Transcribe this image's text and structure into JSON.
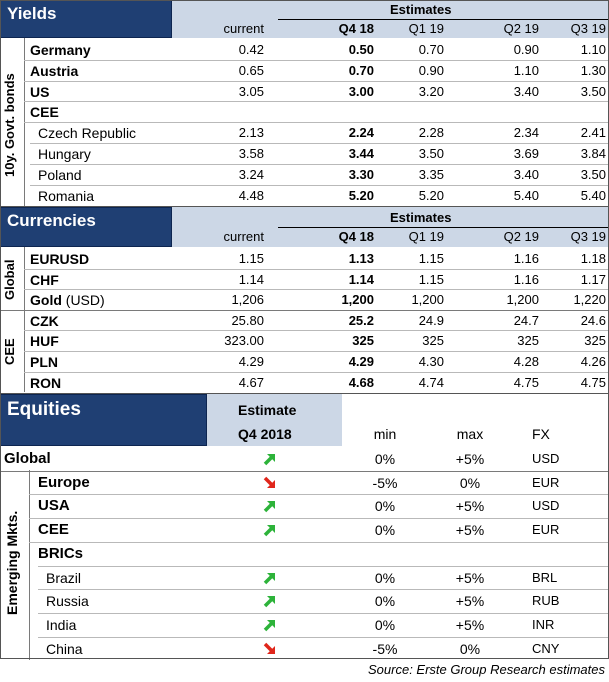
{
  "yields": {
    "title": "Yields",
    "estimates_label": "Estimates",
    "columns": [
      "current",
      "Q4 18",
      "Q1 19",
      "Q2 19",
      "Q3 19"
    ],
    "side_label": "10y. Govt. bonds",
    "rows": [
      {
        "label": "Germany",
        "values": [
          "0.42",
          "0.50",
          "0.70",
          "0.90",
          "1.10"
        ]
      },
      {
        "label": "Austria",
        "values": [
          "0.65",
          "0.70",
          "0.90",
          "1.10",
          "1.30"
        ]
      },
      {
        "label": "US",
        "values": [
          "3.05",
          "3.00",
          "3.20",
          "3.40",
          "3.50"
        ]
      },
      {
        "label": "CEE",
        "values": [
          "",
          "",
          "",
          "",
          ""
        ]
      },
      {
        "label": "Czech Republic",
        "values": [
          "2.13",
          "2.24",
          "2.28",
          "2.34",
          "2.41"
        ]
      },
      {
        "label": "Hungary",
        "values": [
          "3.58",
          "3.44",
          "3.50",
          "3.69",
          "3.84"
        ]
      },
      {
        "label": "Poland",
        "values": [
          "3.24",
          "3.30",
          "3.35",
          "3.40",
          "3.50"
        ]
      },
      {
        "label": "Romania",
        "values": [
          "4.48",
          "5.20",
          "5.20",
          "5.40",
          "5.40"
        ]
      }
    ]
  },
  "currencies": {
    "title": "Currencies",
    "estimates_label": "Estimates",
    "columns": [
      "current",
      "Q4 18",
      "Q1 19",
      "Q2 19",
      "Q3 19"
    ],
    "global_label": "Global",
    "cee_label": "CEE",
    "rows": [
      {
        "label": "EURUSD",
        "suffix": "",
        "values": [
          "1.15",
          "1.13",
          "1.15",
          "1.16",
          "1.18"
        ]
      },
      {
        "label": "CHF",
        "suffix": "",
        "values": [
          "1.14",
          "1.14",
          "1.15",
          "1.16",
          "1.17"
        ]
      },
      {
        "label": "Gold",
        "suffix": " (USD)",
        "values": [
          "1,206",
          "1,200",
          "1,200",
          "1,200",
          "1,220"
        ]
      },
      {
        "label": "CZK",
        "suffix": "",
        "values": [
          "25.80",
          "25.2",
          "24.9",
          "24.7",
          "24.6"
        ]
      },
      {
        "label": "HUF",
        "suffix": "",
        "values": [
          "323.00",
          "325",
          "325",
          "325",
          "325"
        ]
      },
      {
        "label": "PLN",
        "suffix": "",
        "values": [
          "4.29",
          "4.29",
          "4.30",
          "4.28",
          "4.26"
        ]
      },
      {
        "label": "RON",
        "suffix": "",
        "values": [
          "4.67",
          "4.68",
          "4.74",
          "4.75",
          "4.75"
        ]
      }
    ]
  },
  "equities": {
    "title": "Equities",
    "estimate_label": "Estimate",
    "estimate_period": "Q4 2018",
    "min_label": "min",
    "max_label": "max",
    "fx_label": "FX",
    "side_label": "Emerging Mkts.",
    "rows": [
      {
        "label": "Global",
        "arrow": "up",
        "min": "0%",
        "max": "+5%",
        "fx": "USD"
      },
      {
        "label": "Europe",
        "arrow": "down",
        "min": "-5%",
        "max": "0%",
        "fx": "EUR"
      },
      {
        "label": "USA",
        "arrow": "up",
        "min": "0%",
        "max": "+5%",
        "fx": "USD"
      },
      {
        "label": "CEE",
        "arrow": "up",
        "min": "0%",
        "max": "+5%",
        "fx": "EUR"
      },
      {
        "label": "BRICs",
        "arrow": "",
        "min": "",
        "max": "",
        "fx": ""
      },
      {
        "label": "Brazil",
        "arrow": "up",
        "min": "0%",
        "max": "+5%",
        "fx": "BRL"
      },
      {
        "label": "Russia",
        "arrow": "up",
        "min": "0%",
        "max": "+5%",
        "fx": "RUB"
      },
      {
        "label": "India",
        "arrow": "up",
        "min": "0%",
        "max": "+5%",
        "fx": "INR"
      },
      {
        "label": "China",
        "arrow": "down",
        "min": "-5%",
        "max": "0%",
        "fx": "CNY"
      }
    ],
    "arrow_colors": {
      "up": "#2db33a",
      "down": "#e0261b"
    }
  },
  "source": "Source: Erste Group Research estimates"
}
